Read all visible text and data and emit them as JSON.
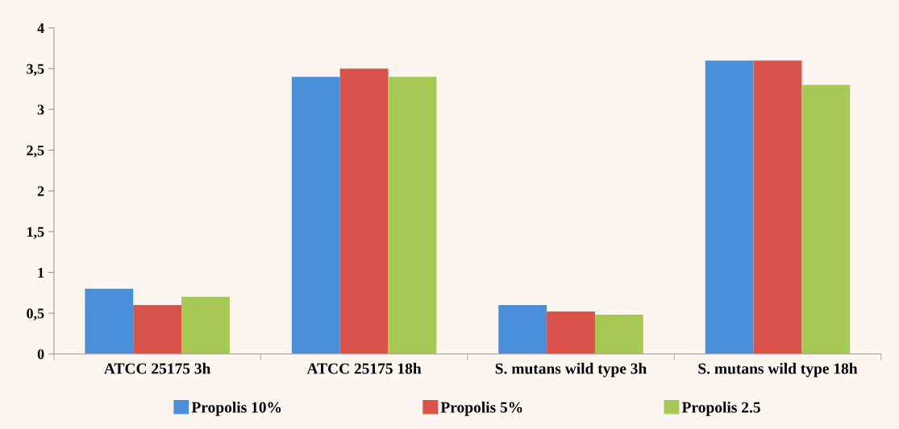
{
  "chart_data": {
    "type": "bar",
    "categories": [
      "ATCC 25175 3h",
      "ATCC 25175 18h",
      "S. mutans wild type 3h",
      "S. mutans wild type 18h"
    ],
    "series": [
      {
        "name": "Propolis 10%",
        "color": "#4a90d9",
        "values": [
          0.8,
          3.4,
          0.6,
          3.6
        ]
      },
      {
        "name": "Propolis 5%",
        "color": "#d9534a",
        "values": [
          0.6,
          3.5,
          0.52,
          3.6
        ]
      },
      {
        "name": "Propolis 2.5",
        "color": "#a6c955",
        "values": [
          0.7,
          3.4,
          0.48,
          3.3
        ]
      }
    ],
    "ylim": [
      0,
      4
    ],
    "yticks": [
      0,
      {
        "value": 0.5,
        "label": "0,5"
      },
      1,
      {
        "value": 1.5,
        "label": "1,5"
      },
      2,
      {
        "value": 2.5,
        "label": "2,5"
      },
      3,
      {
        "value": 3.5,
        "label": "3,5"
      },
      4
    ],
    "grid": false,
    "legend": "bottom"
  }
}
